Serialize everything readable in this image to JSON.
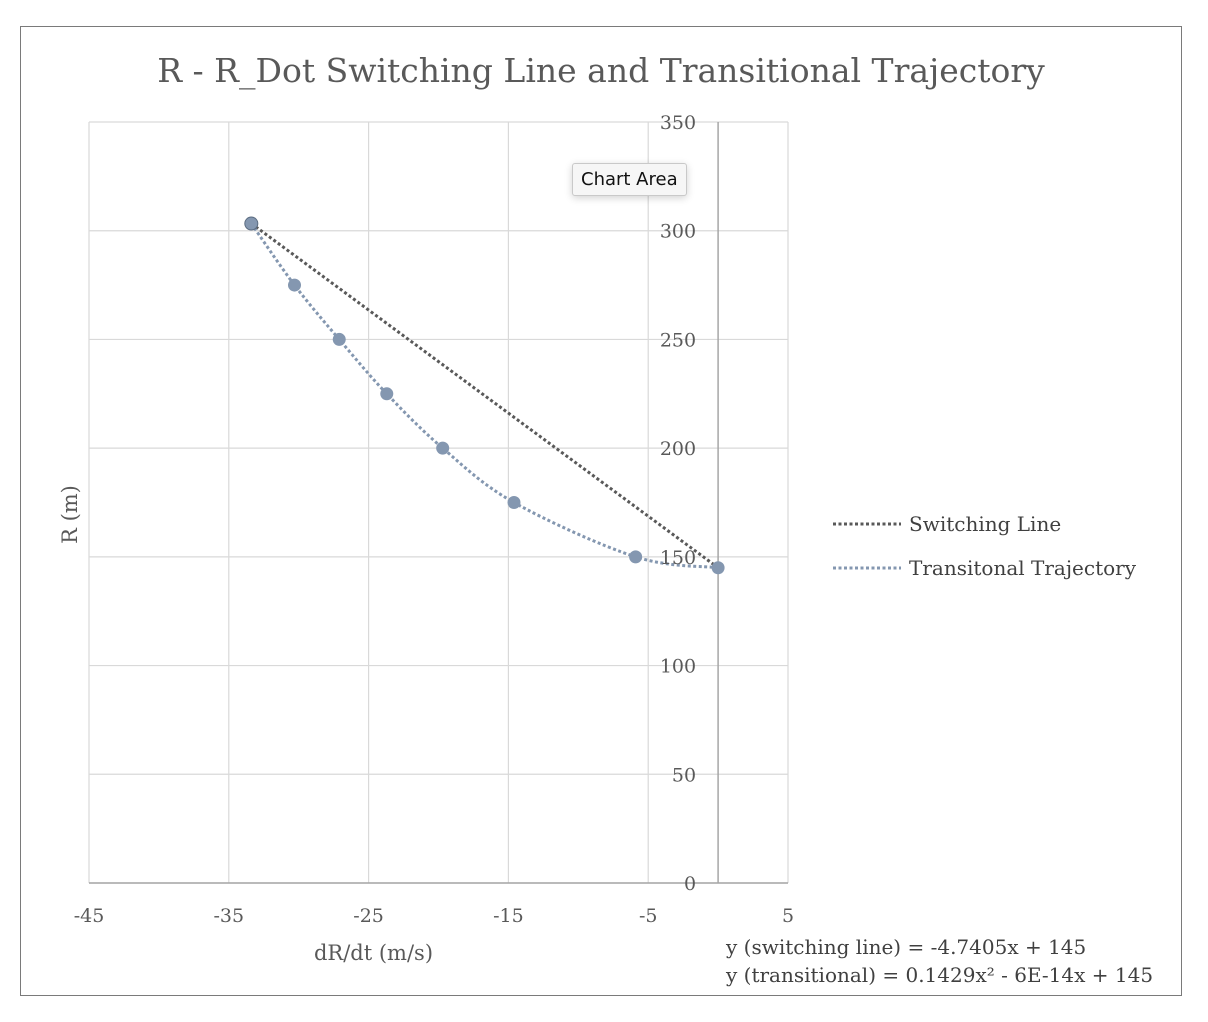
{
  "chart_data": {
    "type": "scatter",
    "title": "R - R_Dot Switching Line and Transitional Trajectory",
    "xlabel": "dR/dt (m/s)",
    "ylabel": "R (m)",
    "xlim": [
      -45,
      5
    ],
    "ylim": [
      0,
      350
    ],
    "x_ticks": [
      -45,
      -35,
      -25,
      -15,
      -5,
      5
    ],
    "y_ticks": [
      0,
      50,
      100,
      150,
      200,
      250,
      300,
      350
    ],
    "x_tick_labels": [
      "-45",
      "-35",
      "-25",
      "-15",
      "-5",
      "5"
    ],
    "y_tick_labels": [
      "0",
      "50",
      "100",
      "150",
      "200",
      "250",
      "300",
      "350"
    ],
    "grid": true,
    "legend_position": "right",
    "series": [
      {
        "name": "Switching Line",
        "color": "#595959",
        "markers": false,
        "x": [
          -33.39,
          0
        ],
        "y": [
          303.3,
          145
        ]
      },
      {
        "name": "Transitonal Trajectory",
        "color": "#8497b0",
        "markers": true,
        "x": [
          -33.39,
          -30.3,
          -27.1,
          -23.7,
          -19.7,
          -14.6,
          -5.9,
          0
        ],
        "y": [
          303.3,
          275,
          250,
          225,
          200,
          175,
          150,
          145
        ]
      }
    ],
    "annotations": [
      "y (switching line) = -4.7405x + 145",
      "y (transitional) = 0.1429x² - 6E-14x + 145"
    ]
  },
  "tooltip": {
    "label": "Chart Area"
  }
}
